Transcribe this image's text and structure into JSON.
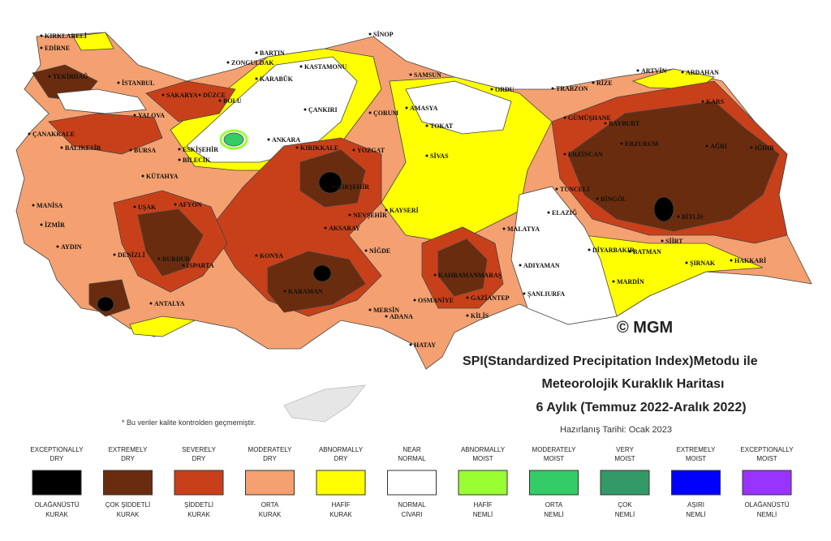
{
  "header": {
    "line1": "SPI(Standardized Precipitation Index)Metodu ile",
    "line2": "Meteorolojik Kuraklık Haritası",
    "line3": "6 Aylık (Temmuz 2022-Aralık 2022)",
    "date": "Hazırlanış Tarihi: Ocak 2023"
  },
  "logo": "© MGM",
  "note": "* Bu veriler kalite kontrolden geçmemiştir.",
  "legend": [
    {
      "en": [
        "EXCEPTIONALLY",
        "DRY"
      ],
      "tr": [
        "OLAĞANÜSTÜ",
        "KURAK"
      ],
      "color": "#000000"
    },
    {
      "en": [
        "EXTREMELY",
        "DRY"
      ],
      "tr": [
        "ÇOK ŞİDDETLİ",
        "KURAK"
      ],
      "color": "#6a2c0e"
    },
    {
      "en": [
        "SEVERELY",
        "DRY"
      ],
      "tr": [
        "ŞİDDETLİ",
        "KURAK"
      ],
      "color": "#c8401a"
    },
    {
      "en": [
        "MODERATELY",
        "DRY"
      ],
      "tr": [
        "ORTA",
        "KURAK"
      ],
      "color": "#f4a070"
    },
    {
      "en": [
        "ABNORMALLY",
        "DRY"
      ],
      "tr": [
        "HAFİF",
        "KURAK"
      ],
      "color": "#ffff00"
    },
    {
      "en": [
        "NEAR",
        "NORMAL"
      ],
      "tr": [
        "NORMAL",
        "CİVARI"
      ],
      "color": "#ffffff"
    },
    {
      "en": [
        "ABNORMALLY",
        "MOIST"
      ],
      "tr": [
        "HAFİF",
        "NEMLİ"
      ],
      "color": "#99ff33"
    },
    {
      "en": [
        "MODERATELY",
        "MOIST"
      ],
      "tr": [
        "ORTA",
        "NEMLİ"
      ],
      "color": "#33cc66"
    },
    {
      "en": [
        "VERY",
        "MOIST"
      ],
      "tr": [
        "ÇOK",
        "NEMLİ"
      ],
      "color": "#339966"
    },
    {
      "en": [
        "EXTREMELY",
        "MOIST"
      ],
      "tr": [
        "AŞIRI",
        "NEMLİ"
      ],
      "color": "#0000ff"
    },
    {
      "en": [
        "EXCEPTIONALLY",
        "MOIST"
      ],
      "tr": [
        "OLAĞANÜSTÜ",
        "NEMLİ"
      ],
      "color": "#9933ff"
    }
  ],
  "cities": [
    "KIRKLARELİ",
    "EDİRNE",
    "TEKİRDAĞ",
    "İSTANBUL",
    "SAKARYA",
    "DÜZCE",
    "BOLU",
    "ZONGULDAK",
    "BARTIN",
    "KARABÜK",
    "KASTAMONU",
    "SİNOP",
    "SAMSUN",
    "ORDU",
    "TRABZON",
    "RİZE",
    "ARTVİN",
    "ARDAHAN",
    "KARS",
    "IĞDIR",
    "AĞRI",
    "ERZURUM",
    "BAYBURT",
    "GÜMÜŞHANE",
    "TOKAT",
    "AMASYA",
    "ÇORUM",
    "ÇANKIRI",
    "ANKARA",
    "KIRIKKALE",
    "YOZGAT",
    "SİVAS",
    "ERZİNCAN",
    "TUNCELİ",
    "BİNGÖL",
    "BİTLİS",
    "SİİRT",
    "ŞIRNAK",
    "HAKKARİ",
    "BATMAN",
    "DİYARBAKIR",
    "MARDİN",
    "ŞANLIURFA",
    "ADIYAMAN",
    "MALATYA",
    "ELAZIĞ",
    "KAHRAMANMARAŞ",
    "OSMANİYE",
    "GAZİANTEP",
    "KİLİS",
    "HATAY",
    "ADANA",
    "MERSİN",
    "NİĞDE",
    "AKSARAY",
    "NEVŞEHİR",
    "KAYSERİ",
    "KIRŞEHİR",
    "KONYA",
    "KARAMAN",
    "ANTALYA",
    "ISPARTA",
    "BURDUR",
    "DENİZLİ",
    "AYDIN",
    "İZMİR",
    "MANİSA",
    "UŞAK",
    "AFYON",
    "KÜTAHYA",
    "BİLECİK",
    "ESKİŞEHİR",
    "BURSA",
    "YALOVA",
    "BALIKESİR",
    "ÇANAKKALE"
  ]
}
